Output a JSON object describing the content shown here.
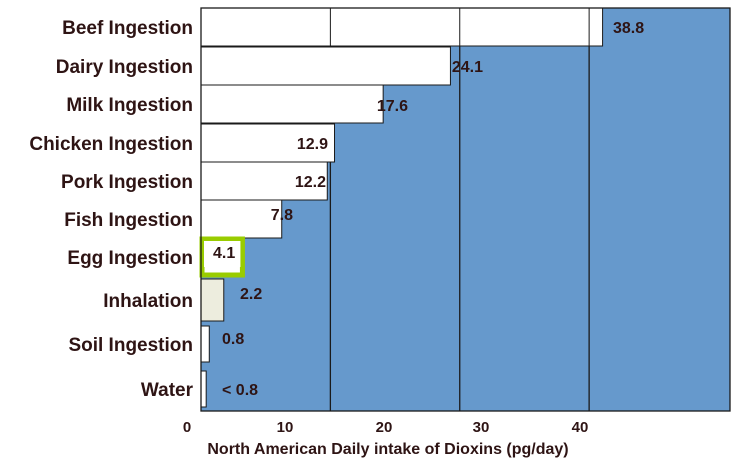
{
  "chart_data": {
    "type": "bar",
    "orientation": "horizontal",
    "categories": [
      "Beef Ingestion",
      "Dairy Ingestion",
      "Milk Ingestion",
      "Chicken Ingestion",
      "Pork Ingestion",
      "Fish Ingestion",
      "Egg Ingestion",
      "Inhalation",
      "Soil Ingestion",
      "Water"
    ],
    "values": [
      38.8,
      24.1,
      17.6,
      12.9,
      12.2,
      7.8,
      4.1,
      2.2,
      0.8,
      0.5
    ],
    "value_labels": [
      "38.8",
      "24.1",
      "17.6",
      "12.9",
      "12.2",
      "7.8",
      "4.1",
      "2.2",
      "0.8",
      "< 0.8"
    ],
    "bar_colors": [
      "#ffffff",
      "#ffffff",
      "#ffffff",
      "#ffffff",
      "#ffffff",
      "#ffffff",
      "#ffffff",
      "#ededde",
      "#ffffff",
      "#ffffff"
    ],
    "highlight": {
      "category": "Egg Ingestion",
      "color": "#99cc00"
    },
    "xlabel": "North American Daily intake of Dioxins (pg/day)",
    "ylabel": "",
    "xlim": [
      0,
      50
    ],
    "xticks": [
      0,
      10,
      20,
      30,
      40
    ],
    "gridlines": [
      0,
      12.5,
      25,
      37.5
    ],
    "background_color": "#6699cc",
    "grid": true,
    "legend": "none"
  }
}
